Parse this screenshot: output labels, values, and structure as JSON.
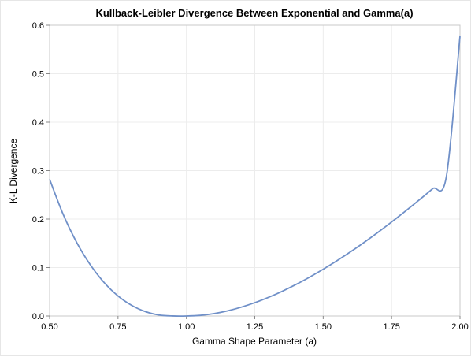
{
  "chart_data": {
    "type": "line",
    "title": "Kullback-Leibler Divergence Between Exponential and Gamma(a)",
    "xlabel": "Gamma Shape Parameter (a)",
    "ylabel": "K-L Divergence",
    "xlim": [
      0.5,
      2.0
    ],
    "ylim": [
      0.0,
      0.6
    ],
    "grid": true,
    "line_color": "#7090c8",
    "x_ticks": [
      "0.50",
      "0.75",
      "1.00",
      "1.25",
      "1.50",
      "1.75",
      "2.00"
    ],
    "y_ticks": [
      "0.0",
      "0.1",
      "0.2",
      "0.3",
      "0.4",
      "0.5",
      "0.6"
    ],
    "series": [
      {
        "x": [
          0.5,
          0.55,
          0.6,
          0.65,
          0.7,
          0.75,
          0.8,
          0.85,
          0.9,
          0.95,
          1.0,
          1.05,
          1.1,
          1.15,
          1.2,
          1.25,
          1.3,
          1.35,
          1.4,
          1.45,
          1.5,
          1.55,
          1.6,
          1.65,
          1.7,
          1.75,
          1.8,
          1.85,
          1.9,
          1.95,
          2.0
        ],
        "values": [
          0.2822,
          0.2091,
          0.1508,
          0.1047,
          0.0686,
          0.0414,
          0.0219,
          0.0091,
          0.0021,
          0.0001,
          0.0,
          0.0013,
          0.0049,
          0.0106,
          0.0182,
          0.0275,
          0.0385,
          0.051,
          0.0649,
          0.0801,
          0.0965,
          0.114,
          0.1325,
          0.1521,
          0.1726,
          0.194,
          0.2162,
          0.2391,
          0.2628,
          0.2872,
          0.5772
        ]
      }
    ]
  }
}
